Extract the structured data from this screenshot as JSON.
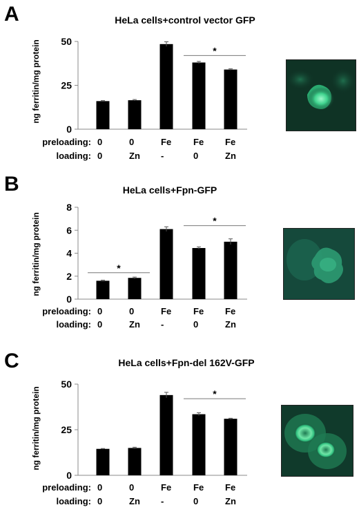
{
  "panels": [
    {
      "letter": "A",
      "title": "HeLa cells+control vector GFP",
      "ylabel": "ng ferritin/mg protein",
      "yticks": [
        "0",
        "25",
        "50"
      ],
      "ylim": [
        0,
        50
      ],
      "preloading_label": "preloading:",
      "loading_label": "loading:",
      "preloading": [
        "0",
        "0",
        "Fe",
        "Fe",
        "Fe"
      ],
      "loading": [
        "0",
        "Zn",
        "-",
        "0",
        "Zn"
      ],
      "values": [
        16,
        16.5,
        48.5,
        38,
        34
      ],
      "errors": [
        0.3,
        0.4,
        1.3,
        0.6,
        0.4
      ],
      "significance": [
        {
          "from": 3,
          "to": 4,
          "label": "*",
          "y": 42
        }
      ]
    },
    {
      "letter": "B",
      "title": "HeLa cells+Fpn-GFP",
      "ylabel": "ng ferritin/mg protein",
      "yticks": [
        "0",
        "2",
        "4",
        "6",
        "8"
      ],
      "ylim": [
        0,
        8
      ],
      "preloading_label": "preloading:",
      "loading_label": "loading:",
      "preloading": [
        "0",
        "0",
        "Fe",
        "Fe",
        "Fe"
      ],
      "loading": [
        "0",
        "Zn",
        "-",
        "0",
        "Zn"
      ],
      "values": [
        1.6,
        1.85,
        6.1,
        4.45,
        5.0
      ],
      "errors": [
        0.05,
        0.07,
        0.2,
        0.1,
        0.25
      ],
      "significance": [
        {
          "from": 0,
          "to": 1,
          "label": "*",
          "y": 2.3
        },
        {
          "from": 3,
          "to": 4,
          "label": "*",
          "y": 6.4
        }
      ]
    },
    {
      "letter": "C",
      "title": "HeLa cells+Fpn-del 162V-GFP",
      "ylabel": "ng ferritin/mg protein",
      "yticks": [
        "0",
        "25",
        "50"
      ],
      "ylim": [
        0,
        50
      ],
      "preloading_label": "preloading:",
      "loading_label": "loading:",
      "preloading": [
        "0",
        "0",
        "Fe",
        "Fe",
        "Fe"
      ],
      "loading": [
        "0",
        "Zn",
        "-",
        "0",
        "Zn"
      ],
      "values": [
        14.5,
        15,
        44,
        33.5,
        31
      ],
      "errors": [
        0.2,
        0.4,
        1.5,
        0.8,
        0.3
      ],
      "significance": [
        {
          "from": 3,
          "to": 4,
          "label": "*",
          "y": 42
        }
      ]
    }
  ],
  "chart_data": [
    {
      "type": "bar",
      "title": "HeLa cells+control vector GFP",
      "categories": [
        "0/0",
        "0/Zn",
        "Fe/-",
        "Fe/0",
        "Fe/Zn"
      ],
      "values": [
        16,
        16.5,
        48.5,
        38,
        34
      ],
      "ylabel": "ng ferritin/mg protein",
      "ylim": [
        0,
        50
      ],
      "grid": false
    },
    {
      "type": "bar",
      "title": "HeLa cells+Fpn-GFP",
      "categories": [
        "0/0",
        "0/Zn",
        "Fe/-",
        "Fe/0",
        "Fe/Zn"
      ],
      "values": [
        1.6,
        1.85,
        6.1,
        4.45,
        5.0
      ],
      "ylabel": "ng ferritin/mg protein",
      "ylim": [
        0,
        8
      ],
      "grid": false
    },
    {
      "type": "bar",
      "title": "HeLa cells+Fpn-del 162V-GFP",
      "categories": [
        "0/0",
        "0/Zn",
        "Fe/-",
        "Fe/0",
        "Fe/Zn"
      ],
      "values": [
        14.5,
        15,
        44,
        33.5,
        31
      ],
      "ylabel": "ng ferritin/mg protein",
      "ylim": [
        0,
        50
      ],
      "grid": false
    }
  ]
}
